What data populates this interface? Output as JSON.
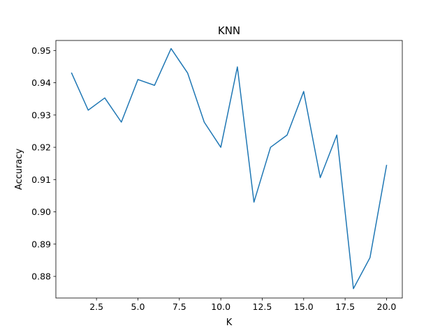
{
  "chart_data": {
    "type": "line",
    "title": "KNN",
    "xlabel": "K",
    "ylabel": "Accuracy",
    "xlim": [
      0.05,
      20.95
    ],
    "ylim": [
      0.8733,
      0.9531
    ],
    "x_ticks": [
      2.5,
      5.0,
      7.5,
      10.0,
      12.5,
      15.0,
      17.5,
      20.0
    ],
    "x_tick_labels": [
      "2.5",
      "5.0",
      "7.5",
      "10.0",
      "12.5",
      "15.0",
      "17.5",
      "20.0"
    ],
    "y_ticks": [
      0.88,
      0.89,
      0.9,
      0.91,
      0.92,
      0.93,
      0.94,
      0.95
    ],
    "y_tick_labels": [
      "0.88",
      "0.89",
      "0.90",
      "0.91",
      "0.92",
      "0.93",
      "0.94",
      "0.95"
    ],
    "grid": false,
    "series": [
      {
        "color": "#1f77b4",
        "x": [
          1,
          2,
          3,
          4,
          5,
          6,
          7,
          8,
          9,
          10,
          11,
          12,
          13,
          14,
          15,
          16,
          17,
          18,
          19,
          20
        ],
        "y": [
          0.943,
          0.9315,
          0.9353,
          0.9278,
          0.941,
          0.9392,
          0.9506,
          0.943,
          0.9278,
          0.92,
          0.9449,
          0.903,
          0.92,
          0.9238,
          0.9373,
          0.9106,
          0.9238,
          0.8762,
          0.8858,
          0.9144
        ]
      }
    ]
  }
}
